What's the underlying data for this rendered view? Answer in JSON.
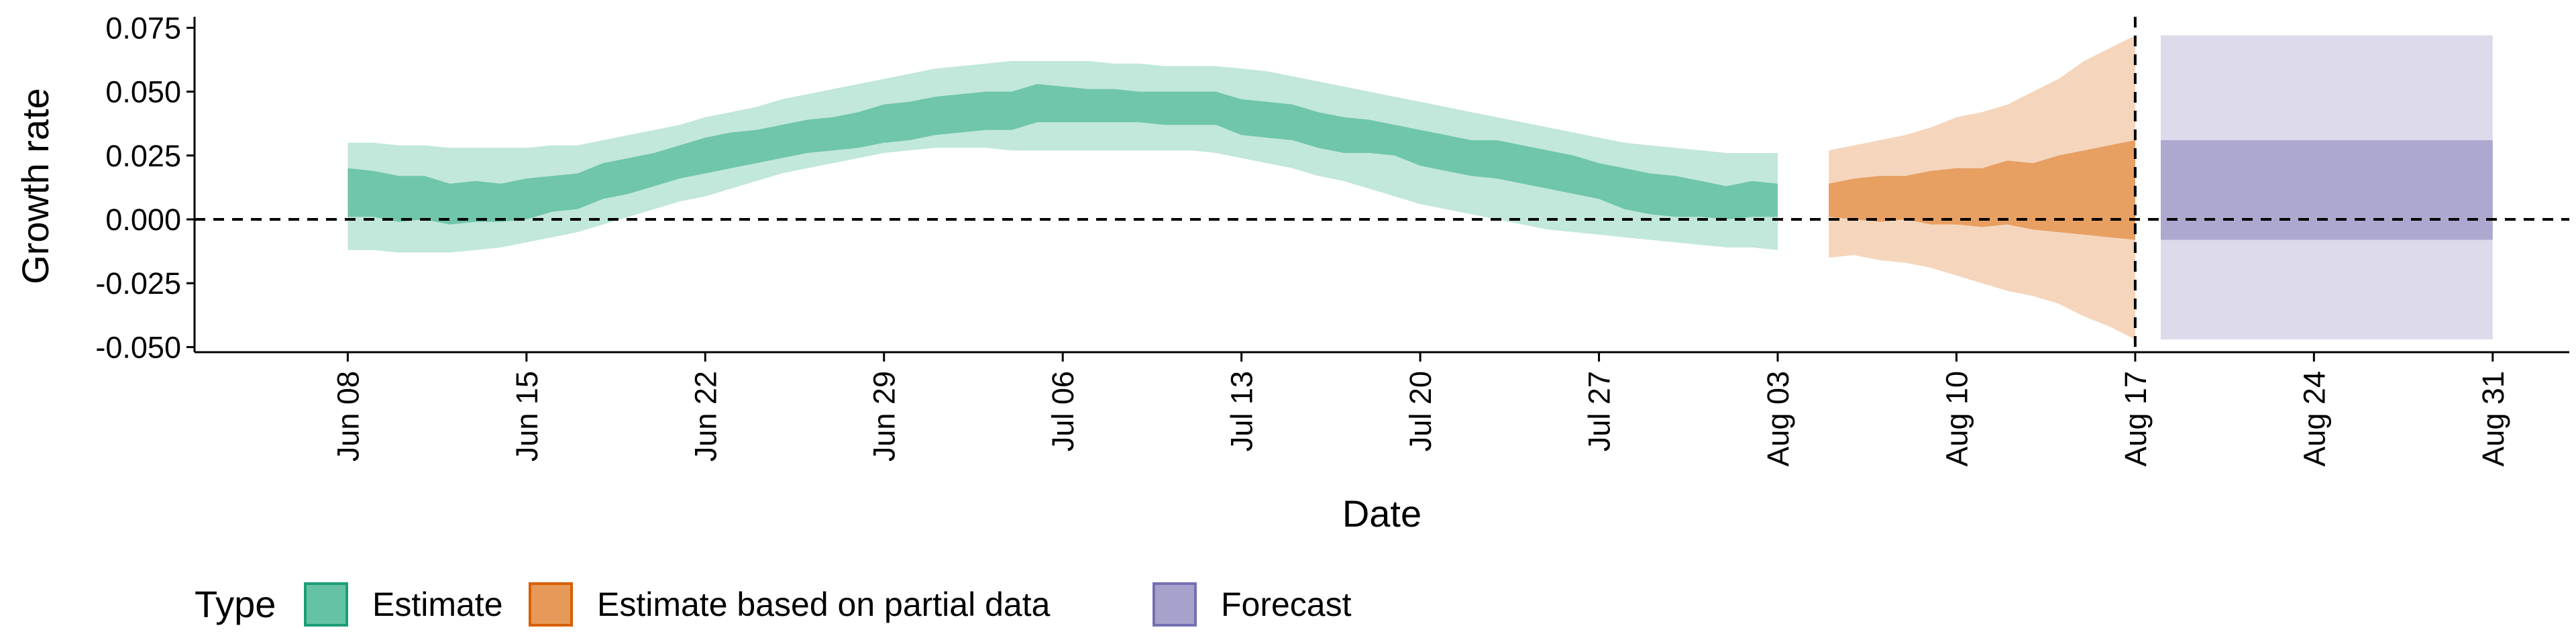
{
  "chart_data": {
    "type": "area",
    "xlabel": "Date",
    "ylabel": "Growth rate",
    "xlim": [
      "2020-06-02",
      "2020-09-03"
    ],
    "ylim": [
      -0.052,
      0.078
    ],
    "y_ticks": [
      0.075,
      0.05,
      0.025,
      0.0,
      -0.025,
      -0.05
    ],
    "y_tick_labels": [
      "0.075",
      "0.050",
      "0.025",
      "0.000",
      "-0.025",
      "-0.050"
    ],
    "x_ticks": [
      "2020-06-08",
      "2020-06-15",
      "2020-06-22",
      "2020-06-29",
      "2020-07-06",
      "2020-07-13",
      "2020-07-20",
      "2020-07-27",
      "2020-08-03",
      "2020-08-10",
      "2020-08-17",
      "2020-08-24",
      "2020-08-31"
    ],
    "x_tick_labels": [
      "Jun 08",
      "Jun 15",
      "Jun 22",
      "Jun 29",
      "Jul 06",
      "Jul 13",
      "Jul 20",
      "Jul 27",
      "Aug 03",
      "Aug 10",
      "Aug 17",
      "Aug 24",
      "Aug 31"
    ],
    "reference_lines": {
      "horizontal_y": 0.0,
      "vertical_date": "2020-08-17"
    },
    "legend": {
      "title": "Type",
      "position": "bottom-left",
      "entries": [
        {
          "label": "Estimate",
          "color": "#66c2a5",
          "border": "#1b9e77"
        },
        {
          "label": "Estimate based on partial data",
          "color": "#e69958",
          "border": "#d95f02"
        },
        {
          "label": "Forecast",
          "color": "#a7a2cc",
          "border": "#7570b3"
        }
      ]
    },
    "series": [
      {
        "name": "Estimate",
        "color": "#66c2a5",
        "x": [
          "2020-06-08",
          "2020-06-09",
          "2020-06-10",
          "2020-06-11",
          "2020-06-12",
          "2020-06-13",
          "2020-06-14",
          "2020-06-15",
          "2020-06-16",
          "2020-06-17",
          "2020-06-18",
          "2020-06-19",
          "2020-06-20",
          "2020-06-21",
          "2020-06-22",
          "2020-06-23",
          "2020-06-24",
          "2020-06-25",
          "2020-06-26",
          "2020-06-27",
          "2020-06-28",
          "2020-06-29",
          "2020-06-30",
          "2020-07-01",
          "2020-07-02",
          "2020-07-03",
          "2020-07-04",
          "2020-07-05",
          "2020-07-06",
          "2020-07-07",
          "2020-07-08",
          "2020-07-09",
          "2020-07-10",
          "2020-07-11",
          "2020-07-12",
          "2020-07-13",
          "2020-07-14",
          "2020-07-15",
          "2020-07-16",
          "2020-07-17",
          "2020-07-18",
          "2020-07-19",
          "2020-07-20",
          "2020-07-21",
          "2020-07-22",
          "2020-07-23",
          "2020-07-24",
          "2020-07-25",
          "2020-07-26",
          "2020-07-27",
          "2020-07-28",
          "2020-07-29",
          "2020-07-30",
          "2020-07-31",
          "2020-08-01",
          "2020-08-02",
          "2020-08-03"
        ],
        "outer_upper": [
          0.03,
          0.03,
          0.029,
          0.029,
          0.028,
          0.028,
          0.028,
          0.028,
          0.029,
          0.029,
          0.031,
          0.033,
          0.035,
          0.037,
          0.04,
          0.042,
          0.044,
          0.047,
          0.049,
          0.051,
          0.053,
          0.055,
          0.057,
          0.059,
          0.06,
          0.061,
          0.062,
          0.062,
          0.062,
          0.062,
          0.061,
          0.061,
          0.06,
          0.06,
          0.06,
          0.059,
          0.058,
          0.056,
          0.054,
          0.052,
          0.05,
          0.048,
          0.046,
          0.044,
          0.042,
          0.04,
          0.038,
          0.036,
          0.034,
          0.032,
          0.03,
          0.029,
          0.028,
          0.027,
          0.026,
          0.026,
          0.026
        ],
        "inner_upper": [
          0.02,
          0.019,
          0.017,
          0.017,
          0.014,
          0.015,
          0.014,
          0.016,
          0.017,
          0.018,
          0.022,
          0.024,
          0.026,
          0.029,
          0.032,
          0.034,
          0.035,
          0.037,
          0.039,
          0.04,
          0.042,
          0.045,
          0.046,
          0.048,
          0.049,
          0.05,
          0.05,
          0.053,
          0.052,
          0.051,
          0.051,
          0.05,
          0.05,
          0.05,
          0.05,
          0.047,
          0.046,
          0.045,
          0.042,
          0.04,
          0.039,
          0.037,
          0.035,
          0.033,
          0.031,
          0.031,
          0.029,
          0.027,
          0.025,
          0.022,
          0.02,
          0.018,
          0.017,
          0.015,
          0.013,
          0.015,
          0.014
        ],
        "inner_lower": [
          0.001,
          0.001,
          -0.001,
          0.0,
          -0.002,
          -0.001,
          -0.001,
          0.0,
          0.003,
          0.004,
          0.008,
          0.01,
          0.013,
          0.016,
          0.018,
          0.02,
          0.022,
          0.024,
          0.026,
          0.027,
          0.028,
          0.03,
          0.031,
          0.033,
          0.034,
          0.035,
          0.035,
          0.038,
          0.038,
          0.038,
          0.038,
          0.038,
          0.037,
          0.037,
          0.037,
          0.033,
          0.032,
          0.031,
          0.028,
          0.026,
          0.026,
          0.025,
          0.021,
          0.019,
          0.017,
          0.016,
          0.014,
          0.012,
          0.01,
          0.008,
          0.004,
          0.002,
          0.001,
          0.001,
          0.0,
          0.001,
          0.001
        ],
        "outer_lower": [
          -0.012,
          -0.012,
          -0.013,
          -0.013,
          -0.013,
          -0.012,
          -0.011,
          -0.009,
          -0.007,
          -0.005,
          -0.002,
          0.001,
          0.004,
          0.007,
          0.009,
          0.012,
          0.015,
          0.018,
          0.02,
          0.022,
          0.024,
          0.026,
          0.027,
          0.028,
          0.028,
          0.028,
          0.027,
          0.027,
          0.027,
          0.027,
          0.027,
          0.027,
          0.027,
          0.027,
          0.026,
          0.024,
          0.022,
          0.02,
          0.017,
          0.015,
          0.012,
          0.009,
          0.006,
          0.004,
          0.002,
          0.0,
          -0.002,
          -0.004,
          -0.005,
          -0.006,
          -0.007,
          -0.008,
          -0.009,
          -0.01,
          -0.011,
          -0.011,
          -0.012
        ]
      },
      {
        "name": "Estimate based on partial data",
        "color": "#e69958",
        "x": [
          "2020-08-05",
          "2020-08-06",
          "2020-08-07",
          "2020-08-08",
          "2020-08-09",
          "2020-08-10",
          "2020-08-11",
          "2020-08-12",
          "2020-08-13",
          "2020-08-14",
          "2020-08-15",
          "2020-08-16",
          "2020-08-17"
        ],
        "outer_upper": [
          0.027,
          0.029,
          0.031,
          0.033,
          0.036,
          0.04,
          0.042,
          0.045,
          0.05,
          0.055,
          0.062,
          0.067,
          0.072
        ],
        "inner_upper": [
          0.014,
          0.016,
          0.017,
          0.017,
          0.019,
          0.02,
          0.02,
          0.023,
          0.022,
          0.025,
          0.027,
          0.029,
          0.031
        ],
        "inner_lower": [
          0.001,
          0.0,
          -0.001,
          0.0,
          -0.002,
          -0.002,
          -0.003,
          -0.002,
          -0.004,
          -0.005,
          -0.006,
          -0.007,
          -0.008
        ],
        "outer_lower": [
          -0.015,
          -0.014,
          -0.016,
          -0.017,
          -0.019,
          -0.022,
          -0.025,
          -0.028,
          -0.03,
          -0.033,
          -0.038,
          -0.042,
          -0.047
        ]
      },
      {
        "name": "Forecast",
        "color": "#a7a2cc",
        "x": [
          "2020-08-18",
          "2020-08-31"
        ],
        "outer_upper": [
          0.072,
          0.072
        ],
        "inner_upper": [
          0.031,
          0.031
        ],
        "inner_lower": [
          -0.008,
          -0.008
        ],
        "outer_lower": [
          -0.047,
          -0.047
        ]
      }
    ]
  }
}
